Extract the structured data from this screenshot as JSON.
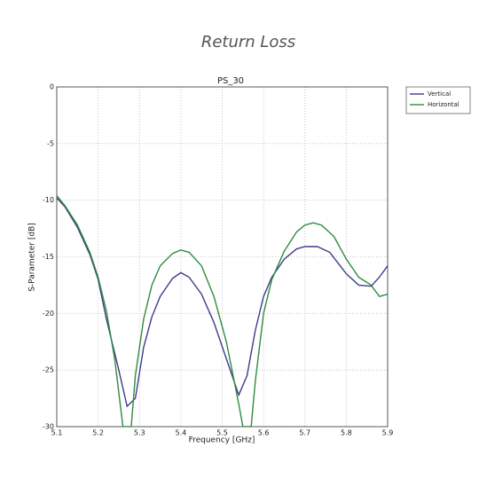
{
  "chart_data": {
    "type": "line",
    "title": "Return Loss",
    "subtitle": "PS_30",
    "xlabel": "Frequency [GHz]",
    "ylabel": "S-Parameter [dB]",
    "xlim": [
      5.1,
      5.9
    ],
    "xticks": [
      5.1,
      5.2,
      5.3,
      5.4,
      5.5,
      5.6,
      5.7,
      5.8,
      5.9
    ],
    "ylim": [
      -30,
      0
    ],
    "yticks": [
      0,
      -5,
      -10,
      -15,
      -20,
      -25,
      -30
    ],
    "grid": true,
    "legend": "outside-right",
    "series": [
      {
        "name": "Vertical",
        "color": "#3c3c8c",
        "x": [
          5.1,
          5.12,
          5.15,
          5.18,
          5.2,
          5.22,
          5.25,
          5.27,
          5.29,
          5.31,
          5.33,
          5.35,
          5.38,
          5.4,
          5.42,
          5.45,
          5.48,
          5.51,
          5.54,
          5.56,
          5.58,
          5.6,
          5.62,
          5.65,
          5.68,
          5.7,
          5.73,
          5.76,
          5.8,
          5.83,
          5.86,
          5.88,
          5.9
        ],
        "values": [
          -9.8,
          -10.6,
          -12.4,
          -14.8,
          -17,
          -20.5,
          -25,
          -28.2,
          -27.5,
          -23,
          -20.3,
          -18.5,
          -16.9,
          -16.4,
          -16.8,
          -18.3,
          -20.8,
          -24,
          -27.2,
          -25.5,
          -21.5,
          -18.5,
          -16.8,
          -15.2,
          -14.3,
          -14.1,
          -14.1,
          -14.6,
          -16.5,
          -17.5,
          -17.6,
          -16.8,
          -15.8
        ]
      },
      {
        "name": "Horizontal",
        "color": "#2e8b3e",
        "x": [
          5.1,
          5.12,
          5.15,
          5.18,
          5.2,
          5.22,
          5.24,
          5.26,
          5.28,
          5.29,
          5.31,
          5.33,
          5.35,
          5.38,
          5.4,
          5.42,
          5.45,
          5.48,
          5.51,
          5.54,
          5.55,
          5.57,
          5.58,
          5.6,
          5.62,
          5.65,
          5.68,
          5.7,
          5.72,
          5.74,
          5.77,
          5.8,
          5.83,
          5.86,
          5.88,
          5.9
        ],
        "values": [
          -9.6,
          -10.5,
          -12.2,
          -14.6,
          -16.8,
          -19.8,
          -24,
          -30,
          -30,
          -25.5,
          -20.5,
          -17.5,
          -15.8,
          -14.7,
          -14.4,
          -14.6,
          -15.8,
          -18.5,
          -22.5,
          -28,
          -30,
          -30,
          -26,
          -20,
          -17,
          -14.5,
          -12.8,
          -12.2,
          -12,
          -12.2,
          -13.2,
          -15.2,
          -16.8,
          -17.5,
          -18.5,
          -18.3
        ]
      }
    ]
  }
}
